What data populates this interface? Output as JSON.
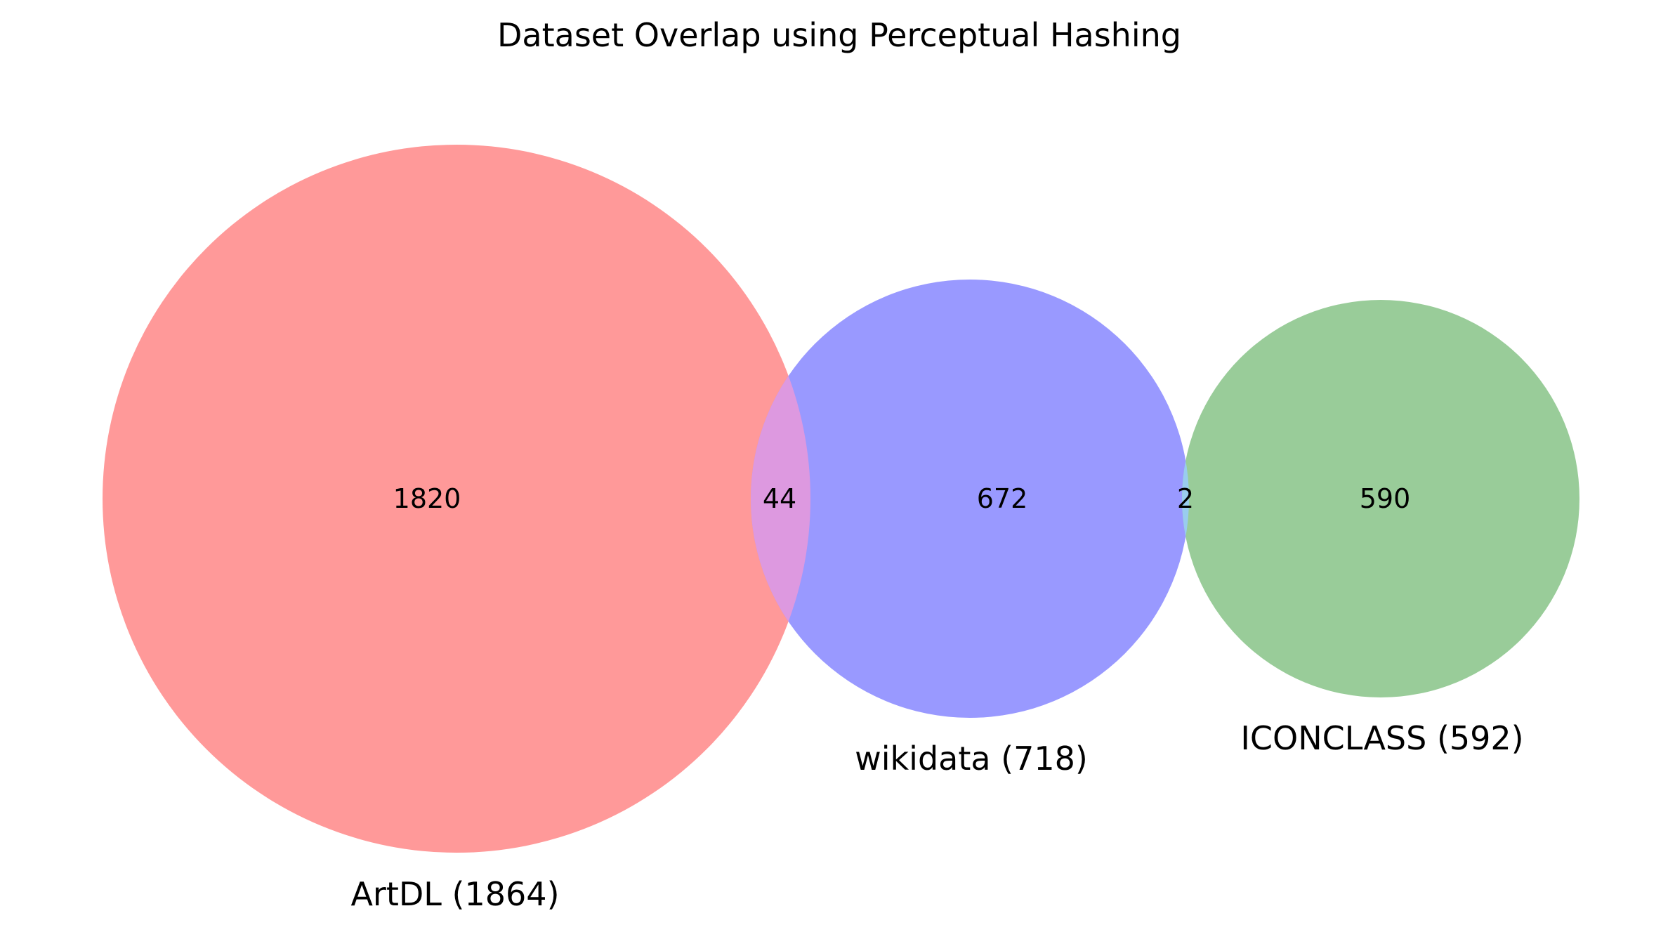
{
  "chart_data": {
    "type": "venn",
    "title": "Dataset Overlap using Perceptual Hashing",
    "sets": [
      {
        "key": "artdl",
        "label": "ArtDL (1864)",
        "size": 1864,
        "color": "#ff9999"
      },
      {
        "key": "wikidata",
        "label": "wikidata (718)",
        "size": 718,
        "color": "#9999ff"
      },
      {
        "key": "iconclass",
        "label": "ICONCLASS (592)",
        "size": 592,
        "color": "#99cc99"
      }
    ],
    "regions": [
      {
        "key": "artdl-only",
        "sets": [
          "artdl"
        ],
        "value": "1820"
      },
      {
        "key": "artdl-wikidata",
        "sets": [
          "artdl",
          "wikidata"
        ],
        "value": "44"
      },
      {
        "key": "wikidata-only",
        "sets": [
          "wikidata"
        ],
        "value": "672"
      },
      {
        "key": "wikidata-iconclass",
        "sets": [
          "wikidata",
          "iconclass"
        ],
        "value": "2"
      },
      {
        "key": "iconclass-only",
        "sets": [
          "iconclass"
        ],
        "value": "590"
      }
    ],
    "overlap_colors": {
      "artdl-wikidata": "#dd99e0",
      "wikidata-iconclass": "#99ccee"
    }
  }
}
